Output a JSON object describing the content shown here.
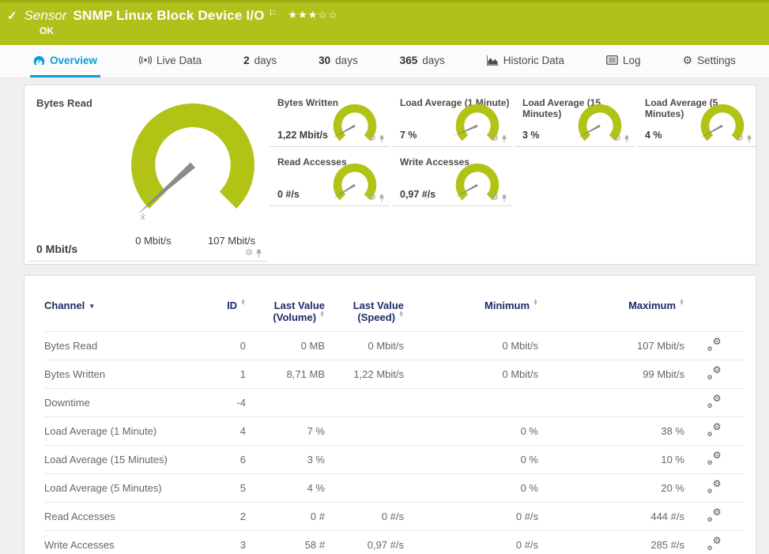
{
  "icons": {
    "check": "✓",
    "flag": "⚐",
    "gear": "⚙",
    "sort_asc": "▲",
    "sort_desc": "▼",
    "sort_desc_active": "▼"
  },
  "header": {
    "kind_label": "Sensor",
    "title": "SNMP Linux Block Device I/O",
    "stars": "★★★☆☆",
    "status": "OK",
    "bar_color": "#b2c01c"
  },
  "tabs": {
    "overview": "Overview",
    "live_data": "Live Data",
    "d2_num": "2",
    "d2_label": "days",
    "d30_num": "30",
    "d30_label": "days",
    "d365_num": "365",
    "d365_label": "days",
    "historic": "Historic Data",
    "log": "Log",
    "settings": "Settings"
  },
  "gauges": {
    "accent": "#b1c315",
    "main": {
      "title": "Bytes Read",
      "value": "0 Mbit/s",
      "scale_min": "0 Mbit/s",
      "scale_max": "107 Mbit/s",
      "avg_marker": "x̄",
      "fraction": 0.012
    },
    "small": [
      {
        "title": "Bytes Written",
        "value": "1,22 Mbit/s",
        "fraction": 0.06
      },
      {
        "title": "Load Average (1 Minute)",
        "value": "7 %",
        "fraction": 0.08
      },
      {
        "title": "Load Average (15 Minutes)",
        "value": "3 %",
        "fraction": 0.06
      },
      {
        "title": "Load Average (5 Minutes)",
        "value": "4 %",
        "fraction": 0.06
      },
      {
        "title": "Read Accesses",
        "value": "0 #/s",
        "fraction": 0.05
      },
      {
        "title": "Write Accesses",
        "value": "0,97 #/s",
        "fraction": 0.06
      }
    ]
  },
  "table": {
    "cols": {
      "channel": "Channel",
      "id": "ID",
      "vol1": "Last Value",
      "vol2": "(Volume)",
      "spd1": "Last Value",
      "spd2": "(Speed)",
      "min": "Minimum",
      "max": "Maximum"
    },
    "rows": [
      {
        "channel": "Bytes Read",
        "id": "0",
        "vol": "0 MB",
        "spd": "0 Mbit/s",
        "min": "0 Mbit/s",
        "max": "107 Mbit/s"
      },
      {
        "channel": "Bytes Written",
        "id": "1",
        "vol": "8,71 MB",
        "spd": "1,22 Mbit/s",
        "min": "0 Mbit/s",
        "max": "99 Mbit/s"
      },
      {
        "channel": "Downtime",
        "id": "-4",
        "vol": "",
        "spd": "",
        "min": "",
        "max": ""
      },
      {
        "channel": "Load Average (1 Minute)",
        "id": "4",
        "vol": "7 %",
        "spd": "",
        "min": "0 %",
        "max": "38 %"
      },
      {
        "channel": "Load Average (15 Minutes)",
        "id": "6",
        "vol": "3 %",
        "spd": "",
        "min": "0 %",
        "max": "10 %"
      },
      {
        "channel": "Load Average (5 Minutes)",
        "id": "5",
        "vol": "4 %",
        "spd": "",
        "min": "0 %",
        "max": "20 %"
      },
      {
        "channel": "Read Accesses",
        "id": "2",
        "vol": "0 #",
        "spd": "0 #/s",
        "min": "0 #/s",
        "max": "444 #/s"
      },
      {
        "channel": "Write Accesses",
        "id": "3",
        "vol": "58 #",
        "spd": "0,97 #/s",
        "min": "0 #/s",
        "max": "285 #/s"
      }
    ]
  }
}
